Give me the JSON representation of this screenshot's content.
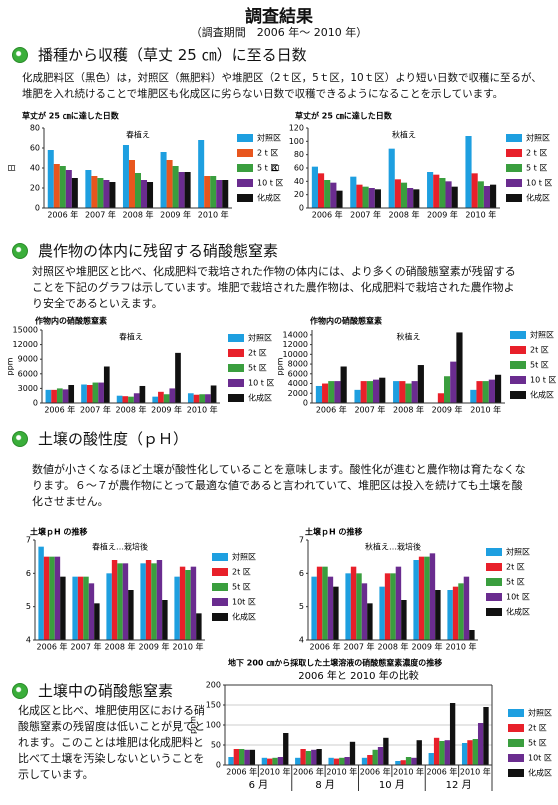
{
  "header": {
    "title": "調査結果",
    "subtitle": "（調査期間　2006 年～ 2010 年）"
  },
  "sections": [
    {
      "heading": "播種から収穫（草丈 25 ㎝）に至る日数",
      "text": "化成肥料区（黒色）は，対照区（無肥料）や堆肥区（2ｔ区，5ｔ区，10ｔ区）より短い日数で収穫に至るが、堆肥を入れ続けることで堆肥区も化成区に劣らない日数で収穫できるようになることを示しています。"
    },
    {
      "heading": "農作物の体内に残留する硝酸態窒素",
      "text": "対照区や堆肥区と比べ、化成肥料で栽培された作物の体内には、より多くの硝酸態窒素が残留することを下記のグラフは示しています。堆肥で栽培された農作物は、化成肥料で栽培された農作物より安全であるといえます。"
    },
    {
      "heading": "土壌の酸性度（ｐＨ）",
      "text": "数値が小さくなるほど土壌が酸性化していることを意味します。酸性化が進むと農作物は育たなくなります。６～７が農作物にとって最適な値であると言われていて、堆肥区は投入を続けても土壌を酸化させません。"
    },
    {
      "heading": "土壌中の硝酸態窒素",
      "text": "化成区と比べ、堆肥使用区における硝酸態窒素の残留度は低いことが見てとれます。このことは堆肥は化成肥料と比べて土壌を汚染しないということを示しています。"
    }
  ],
  "chart_data": [
    {
      "type": "bar",
      "title": "草丈が 25 ㎝に達した日数",
      "subtitle": "春植え",
      "ylabel": "日",
      "categories": [
        "2006 年",
        "2007 年",
        "2008 年",
        "2009 年",
        "2010 年"
      ],
      "series": [
        {
          "name": "対照区",
          "color": "#1e9fe0",
          "values": [
            58,
            38,
            63,
            56,
            68
          ]
        },
        {
          "name": "2 t 区",
          "color": "#e8561e",
          "values": [
            44,
            32,
            48,
            48,
            32
          ]
        },
        {
          "name": "5 t 区",
          "color": "#3a9e3e",
          "values": [
            42,
            30,
            35,
            42,
            32
          ]
        },
        {
          "name": "10 t 区",
          "color": "#6a2c8f",
          "values": [
            38,
            28,
            28,
            36,
            28
          ]
        },
        {
          "name": "化成区",
          "color": "#111111",
          "values": [
            30,
            26,
            26,
            36,
            28
          ]
        }
      ],
      "ylim": [
        0,
        80
      ],
      "yticks": [
        0,
        20,
        40,
        60,
        80
      ],
      "grid": false
    },
    {
      "type": "bar",
      "title": "草丈が 25 ㎝に達した日数",
      "subtitle": "秋植え",
      "ylabel": "日",
      "categories": [
        "2006 年",
        "2007 年",
        "2008 年",
        "2009 年",
        "2010 年"
      ],
      "series": [
        {
          "name": "対照区",
          "color": "#1e9fe0",
          "values": [
            62,
            47,
            89,
            54,
            108
          ]
        },
        {
          "name": "2 t 区",
          "color": "#e8202a",
          "values": [
            52,
            35,
            43,
            50,
            52
          ]
        },
        {
          "name": "5 t 区",
          "color": "#3a9e3e",
          "values": [
            42,
            32,
            38,
            45,
            40
          ]
        },
        {
          "name": "10 t 区",
          "color": "#6a2c8f",
          "values": [
            38,
            30,
            30,
            40,
            33
          ]
        },
        {
          "name": "化成区",
          "color": "#111111",
          "values": [
            26,
            28,
            28,
            32,
            35
          ]
        }
      ],
      "ylim": [
        0,
        120
      ],
      "yticks": [
        0,
        20,
        40,
        60,
        80,
        100,
        120
      ],
      "grid": false
    },
    {
      "type": "bar",
      "title": "作物内の硝酸態窒素",
      "subtitle": "春植え",
      "ylabel": "ppm",
      "categories": [
        "2006 年",
        "2007 年",
        "2008 年",
        "2009 年",
        "2010 年"
      ],
      "series": [
        {
          "name": "対照区",
          "color": "#1e9fe0",
          "values": [
            2700,
            3800,
            1500,
            1300,
            2000
          ]
        },
        {
          "name": "2t 区",
          "color": "#e8202a",
          "values": [
            2700,
            3700,
            1400,
            2300,
            1700
          ]
        },
        {
          "name": "5t 区",
          "color": "#3a9e3e",
          "values": [
            3000,
            4200,
            1300,
            1800,
            1800
          ]
        },
        {
          "name": "10 t 区",
          "color": "#6a2c8f",
          "values": [
            2800,
            4200,
            2000,
            3000,
            1800
          ]
        },
        {
          "name": "化成区",
          "color": "#111111",
          "values": [
            3700,
            7500,
            3500,
            10300,
            3600
          ]
        }
      ],
      "ylim": [
        0,
        15000
      ],
      "yticks": [
        0,
        3000,
        6000,
        9000,
        12000,
        15000
      ],
      "grid": false
    },
    {
      "type": "bar",
      "title": "作物内の硝酸態窒素",
      "subtitle": "秋植え",
      "ylabel": "ppm",
      "categories": [
        "2006 年",
        "2007 年",
        "2008 年",
        "2009 年",
        "2010 年"
      ],
      "series": [
        {
          "name": "対照区",
          "color": "#1e9fe0",
          "values": [
            3500,
            2700,
            4500,
            null,
            2700
          ]
        },
        {
          "name": "2t 区",
          "color": "#e8202a",
          "values": [
            4000,
            4500,
            4500,
            2000,
            4500
          ]
        },
        {
          "name": "5t 区",
          "color": "#3a9e3e",
          "values": [
            4500,
            4500,
            4000,
            5500,
            4500
          ]
        },
        {
          "name": "10 t 区",
          "color": "#6a2c8f",
          "values": [
            4500,
            4800,
            4500,
            8500,
            4800
          ]
        },
        {
          "name": "化成区",
          "color": "#111111",
          "values": [
            7500,
            5200,
            7800,
            14500,
            5800
          ]
        }
      ],
      "ylim": [
        0,
        15000
      ],
      "yticks": [
        0,
        2000,
        4000,
        6000,
        8000,
        10000,
        12000,
        14000
      ],
      "grid": false
    },
    {
      "type": "bar",
      "title": "土壌ｐH の推移",
      "subtitle": "春植え…栽培後",
      "categories": [
        "2006 年",
        "2007 年",
        "2008 年",
        "2009 年",
        "2010 年"
      ],
      "series": [
        {
          "name": "対照区",
          "color": "#1e9fe0",
          "values": [
            6.8,
            5.9,
            6.0,
            6.3,
            5.9
          ]
        },
        {
          "name": "2t 区",
          "color": "#e8202a",
          "values": [
            6.5,
            5.9,
            6.4,
            6.4,
            6.2
          ]
        },
        {
          "name": "5t 区",
          "color": "#3a9e3e",
          "values": [
            6.5,
            5.9,
            6.3,
            6.3,
            6.1
          ]
        },
        {
          "name": "10t 区",
          "color": "#6a2c8f",
          "values": [
            6.5,
            5.7,
            6.3,
            6.4,
            6.2
          ]
        },
        {
          "name": "化成区",
          "color": "#111111",
          "values": [
            5.9,
            5.1,
            5.5,
            5.2,
            4.8
          ]
        }
      ],
      "ylim": [
        4,
        7
      ],
      "yticks": [
        4,
        5,
        6,
        7
      ],
      "grid": false
    },
    {
      "type": "bar",
      "title": "土壌ｐH の推移",
      "subtitle": "秋植え…栽培後",
      "categories": [
        "2006 年",
        "2007 年",
        "2008 年",
        "2009 年",
        "2010 年"
      ],
      "series": [
        {
          "name": "対照区",
          "color": "#1e9fe0",
          "values": [
            5.9,
            6.0,
            5.6,
            6.4,
            5.5
          ]
        },
        {
          "name": "2t 区",
          "color": "#e8202a",
          "values": [
            6.2,
            6.2,
            6.0,
            6.5,
            5.6
          ]
        },
        {
          "name": "5t 区",
          "color": "#3a9e3e",
          "values": [
            6.2,
            6.0,
            6.0,
            6.5,
            5.7
          ]
        },
        {
          "name": "10t 区",
          "color": "#6a2c8f",
          "values": [
            5.9,
            5.7,
            6.2,
            6.6,
            5.9
          ]
        },
        {
          "name": "化成区",
          "color": "#111111",
          "values": [
            5.6,
            5.1,
            5.2,
            5.5,
            4.3
          ]
        }
      ],
      "ylim": [
        4,
        7
      ],
      "yticks": [
        4,
        5,
        6,
        7
      ],
      "grid": false
    },
    {
      "type": "bar",
      "title": "地下 200 ㎝から採取した土壌溶液の硝酸態窒素濃度の推移",
      "subtitle": "2006 年と 2010 年の比較",
      "ylabel": "ppm",
      "categories": [
        "2006 年",
        "2010 年",
        "2006 年",
        "2010 年",
        "2006 年",
        "2010 年",
        "2006 年",
        "2010 年"
      ],
      "groups": [
        "6 月",
        "8 月",
        "10 月",
        "12 月"
      ],
      "series": [
        {
          "name": "対照区",
          "color": "#1e9fe0",
          "values": [
            20,
            18,
            18,
            18,
            18,
            10,
            30,
            55
          ]
        },
        {
          "name": "2t 区",
          "color": "#e8202a",
          "values": [
            40,
            16,
            40,
            16,
            25,
            12,
            68,
            62
          ]
        },
        {
          "name": "5t 区",
          "color": "#3a9e3e",
          "values": [
            40,
            18,
            35,
            18,
            38,
            20,
            60,
            65
          ]
        },
        {
          "name": "10t 区",
          "color": "#6a2c8f",
          "values": [
            38,
            20,
            38,
            20,
            45,
            18,
            62,
            105
          ]
        },
        {
          "name": "化成区",
          "color": "#111111",
          "values": [
            38,
            80,
            40,
            58,
            68,
            62,
            155,
            145
          ]
        }
      ],
      "ylim": [
        0,
        200
      ],
      "yticks": [
        0,
        50,
        100,
        150,
        200
      ],
      "grid": true
    }
  ]
}
